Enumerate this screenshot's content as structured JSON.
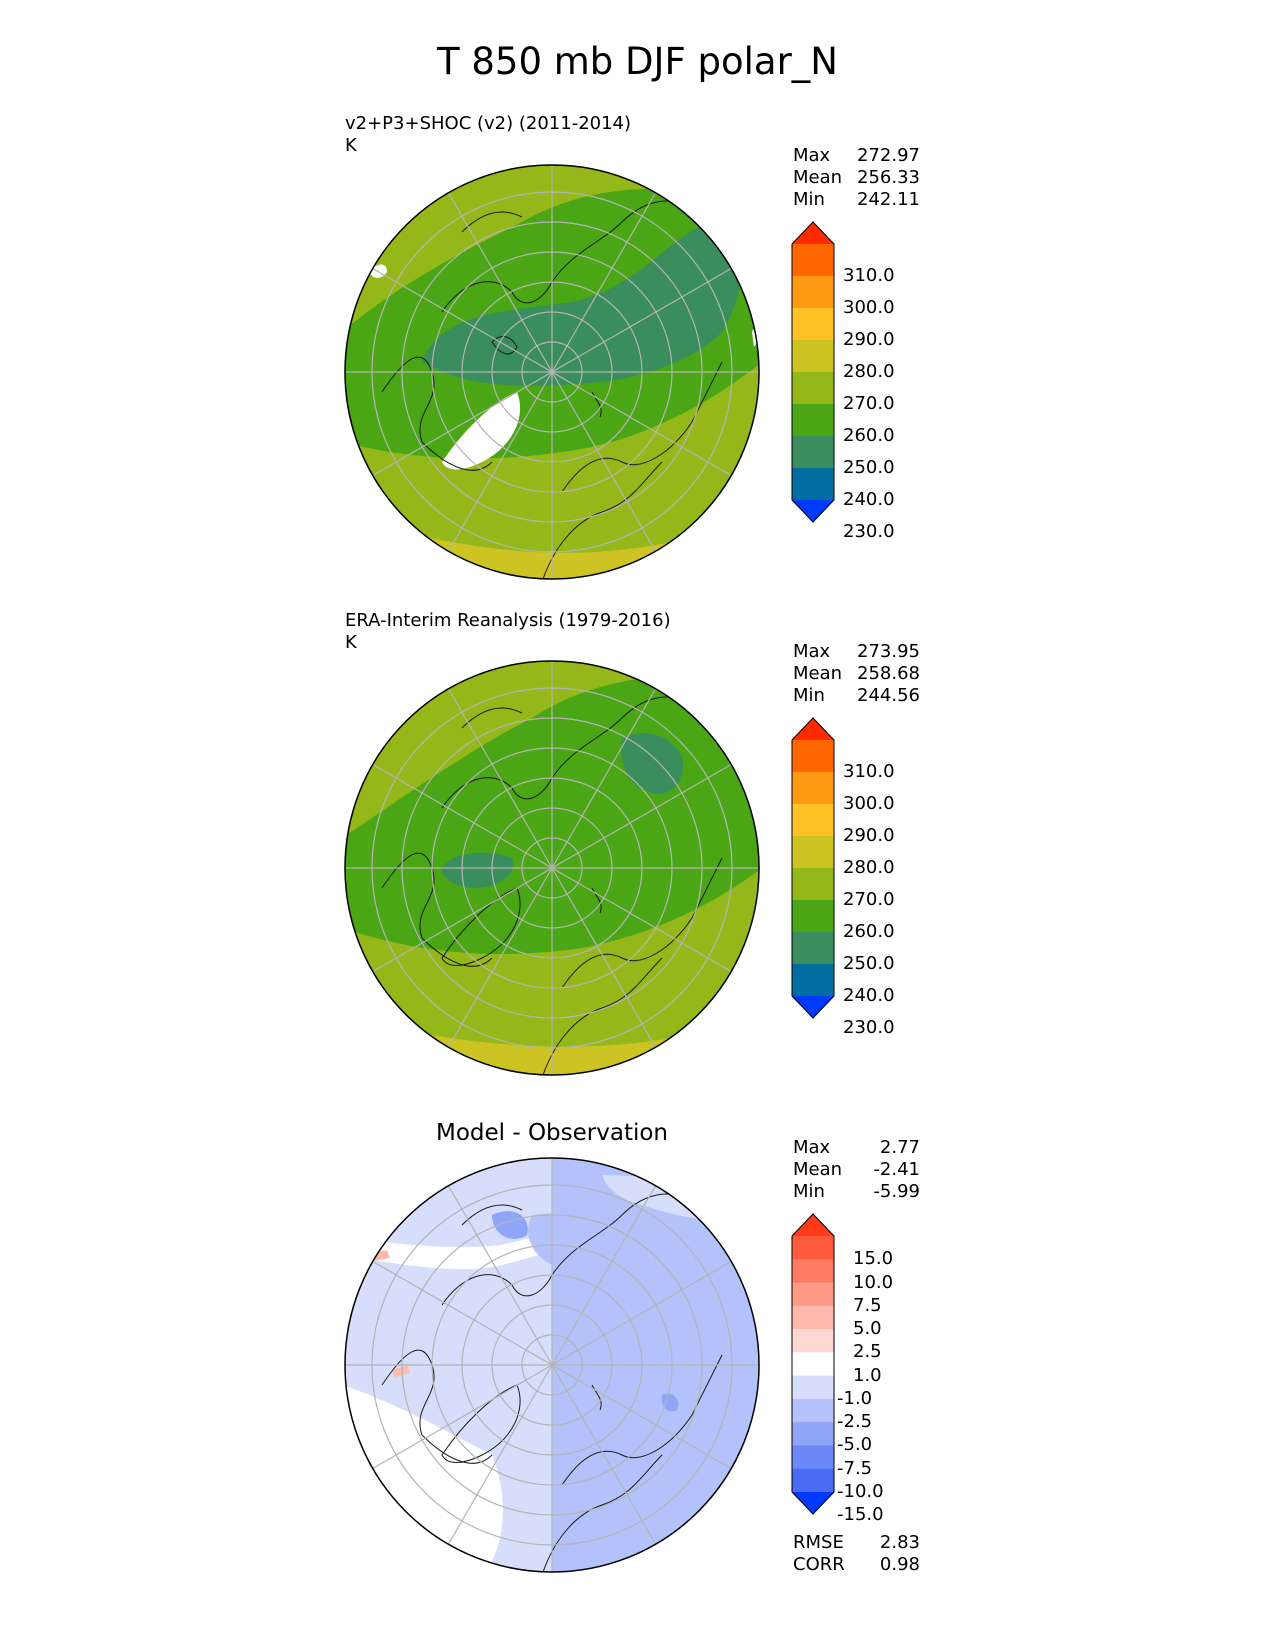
{
  "figure": {
    "title": "T 850 mb DJF polar_N"
  },
  "panels": [
    {
      "name": "test",
      "title_line1": "v2+P3+SHOC (v2) (2011-2014)",
      "title_line2": "K",
      "stats": {
        "max_label": "Max",
        "max": "272.97",
        "mean_label": "Mean",
        "mean": "256.33",
        "min_label": "Min",
        "min": "242.11"
      },
      "colorbar": {
        "labels": [
          "310.0",
          "300.0",
          "290.0",
          "280.0",
          "270.0",
          "260.0",
          "250.0",
          "240.0",
          "230.0"
        ],
        "colors": [
          "#ff2a00",
          "#ff6600",
          "#ff9912",
          "#ffc125",
          "#cdc423",
          "#94b81a",
          "#4aa615",
          "#3a8d5c",
          "#006ea1",
          "#0039ff"
        ]
      }
    },
    {
      "name": "reference",
      "title_line1": "ERA-Interim Reanalysis (1979-2016)",
      "title_line2": "K",
      "stats": {
        "max_label": "Max",
        "max": "273.95",
        "mean_label": "Mean",
        "mean": "258.68",
        "min_label": "Min",
        "min": "244.56"
      },
      "colorbar": {
        "labels": [
          "310.0",
          "300.0",
          "290.0",
          "280.0",
          "270.0",
          "260.0",
          "250.0",
          "240.0",
          "230.0"
        ],
        "colors": [
          "#ff2a00",
          "#ff6600",
          "#ff9912",
          "#ffc125",
          "#cdc423",
          "#94b81a",
          "#4aa615",
          "#3a8d5c",
          "#006ea1",
          "#0039ff"
        ]
      }
    },
    {
      "name": "difference",
      "title": "Model - Observation",
      "stats": {
        "max_label": "Max",
        "max": "2.77",
        "mean_label": "Mean",
        "mean": "-2.41",
        "min_label": "Min",
        "min": "-5.99"
      },
      "colorbar": {
        "labels": [
          "15.0",
          "10.0",
          "7.5",
          "5.0",
          "2.5",
          "1.0",
          "-1.0",
          "-2.5",
          "-5.0",
          "-7.5",
          "-10.0",
          "-15.0"
        ],
        "colors": [
          "#ff3b1a",
          "#ff5a3d",
          "#ff7a63",
          "#ff9a88",
          "#ffb9ad",
          "#ffd8d1",
          "#ffffff",
          "#d6defc",
          "#b3c2fa",
          "#8fa5f8",
          "#6c88f6",
          "#4a6bf4",
          "#0039ff"
        ]
      },
      "metrics": {
        "rmse_label": "RMSE",
        "rmse": "2.83",
        "corr_label": "CORR",
        "corr": "0.98"
      }
    }
  ],
  "colors": {
    "land_outline": "#1a1a1a",
    "grid": "#b4b4b4",
    "missing": "#ffffff"
  }
}
